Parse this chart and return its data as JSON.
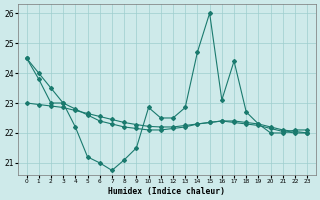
{
  "xlabel": "Humidex (Indice chaleur)",
  "x": [
    0,
    1,
    2,
    3,
    4,
    5,
    6,
    7,
    8,
    9,
    10,
    11,
    12,
    13,
    14,
    15,
    16,
    17,
    18,
    19,
    20,
    21,
    22,
    23
  ],
  "y_spiky": [
    24.5,
    23.8,
    23.0,
    23.0,
    22.2,
    21.2,
    21.0,
    20.75,
    21.1,
    21.5,
    22.85,
    22.5,
    22.5,
    22.85,
    24.7,
    26.0,
    23.1,
    24.4,
    22.7,
    22.3,
    22.0,
    22.0,
    22.1,
    22.1
  ],
  "y_smooth": [
    23.0,
    22.95,
    22.9,
    22.85,
    22.75,
    22.65,
    22.55,
    22.45,
    22.35,
    22.28,
    22.22,
    22.2,
    22.2,
    22.25,
    22.3,
    22.35,
    22.4,
    22.4,
    22.35,
    22.3,
    22.2,
    22.1,
    22.05,
    22.0
  ],
  "y_linear": [
    24.5,
    24.0,
    23.5,
    23.0,
    22.8,
    22.6,
    22.4,
    22.3,
    22.2,
    22.15,
    22.1,
    22.1,
    22.15,
    22.2,
    22.3,
    22.35,
    22.4,
    22.35,
    22.3,
    22.25,
    22.15,
    22.05,
    22.0,
    22.0
  ],
  "ylim": [
    20.6,
    26.3
  ],
  "yticks": [
    21,
    22,
    23,
    24,
    25,
    26
  ],
  "xticks": [
    0,
    1,
    2,
    3,
    4,
    5,
    6,
    7,
    8,
    9,
    10,
    11,
    12,
    13,
    14,
    15,
    16,
    17,
    18,
    19,
    20,
    21,
    22,
    23
  ],
  "line_color": "#1a7a6e",
  "bg_color": "#ceeaea",
  "grid_color": "#9ecece",
  "marker_size": 2.0,
  "linewidth": 0.8
}
